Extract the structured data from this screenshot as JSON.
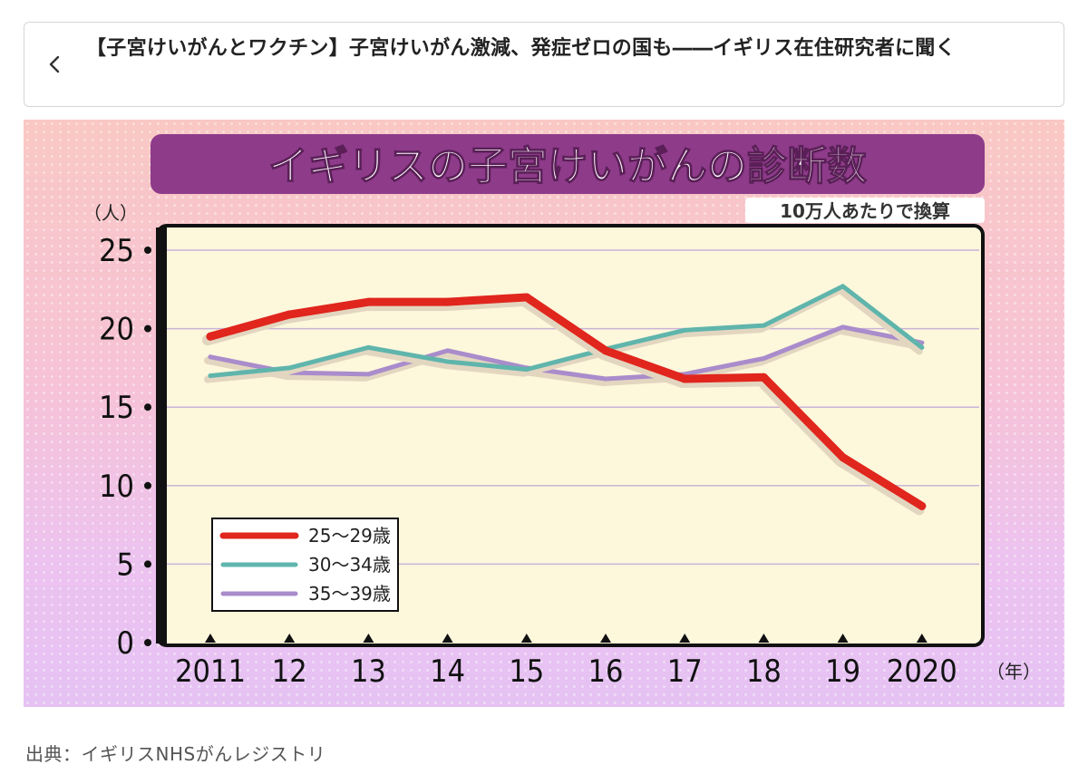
{
  "header": {
    "back_icon": "chevron-left-icon",
    "title": "【子宮けいがんとワクチン】子宮けいがん激減、発症ゼロの国も――イギリス在住研究者に聞く"
  },
  "caption": {
    "source": "出典：イギリスNHSがんレジストリ"
  },
  "colors": {
    "banner": "#8e3b8a",
    "plot_bg": "#fdf7dc",
    "series_25_29": "#e0261d",
    "series_30_34": "#5fb5ac",
    "series_35_39": "#a98ccb"
  },
  "chart_data": {
    "type": "line",
    "title": "イギリスの子宮けいがんの診断数",
    "subtitle": "10万人あたりで換算",
    "xlabel": "（年）",
    "ylabel": "（人）",
    "categories": [
      "2011",
      "12",
      "13",
      "14",
      "15",
      "16",
      "17",
      "18",
      "19",
      "2020"
    ],
    "ylim": [
      0,
      25
    ],
    "yticks": [
      0,
      5,
      10,
      15,
      20,
      25
    ],
    "grid": true,
    "legend_position": "bottom-left",
    "series": [
      {
        "name": "25～29歳",
        "color": "#e0261d",
        "values": [
          19.5,
          20.9,
          21.7,
          21.7,
          22.0,
          18.6,
          16.8,
          16.9,
          11.8,
          8.7
        ]
      },
      {
        "name": "30～34歳",
        "color": "#5fb5ac",
        "values": [
          17.0,
          17.5,
          18.8,
          17.9,
          17.4,
          18.7,
          19.9,
          20.2,
          22.7,
          18.8
        ]
      },
      {
        "name": "35～39歳",
        "color": "#a98ccb",
        "values": [
          18.2,
          17.2,
          17.1,
          18.6,
          17.5,
          16.8,
          17.1,
          18.1,
          20.1,
          19.1
        ]
      }
    ]
  }
}
